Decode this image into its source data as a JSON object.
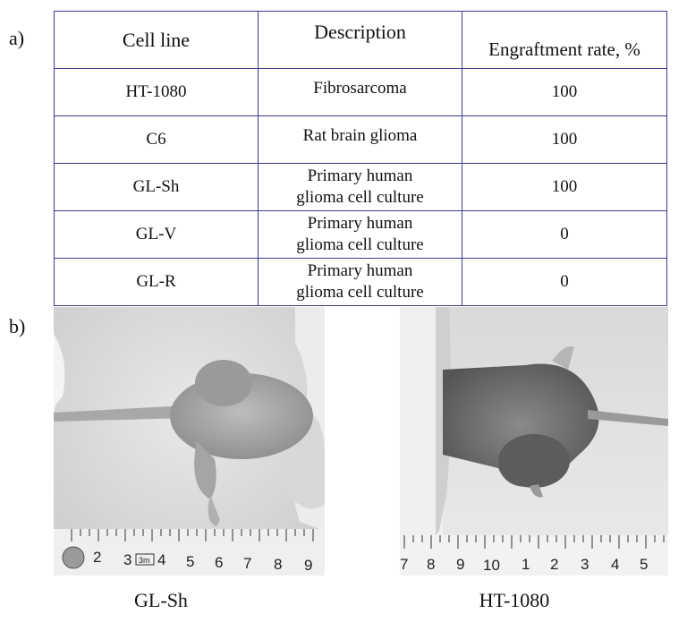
{
  "panel_labels": {
    "a": "a)",
    "b": "b)"
  },
  "table": {
    "headers": [
      "Cell line",
      "Description",
      "Engraftment rate, %"
    ],
    "rows": [
      {
        "cell_line": "HT-1080",
        "description": [
          "Fibrosarcoma"
        ],
        "rate": "100"
      },
      {
        "cell_line": "C6",
        "description": [
          "Rat brain glioma"
        ],
        "rate": "100"
      },
      {
        "cell_line": "GL-Sh",
        "description": [
          "Primary human",
          "glioma cell culture"
        ],
        "rate": "100"
      },
      {
        "cell_line": "GL-V",
        "description": [
          "Primary human",
          "glioma cell culture"
        ],
        "rate": "0"
      },
      {
        "cell_line": "GL-R",
        "description": [
          "Primary human",
          "glioma cell culture"
        ],
        "rate": "0"
      }
    ]
  },
  "photos": {
    "left": {
      "caption": "GL-Sh",
      "ruler_numbers": [
        "2",
        "3",
        "4",
        "5",
        "6",
        "7",
        "8",
        "9"
      ],
      "ruler_mark": "3m"
    },
    "right": {
      "caption": "HT-1080",
      "ruler_numbers": [
        "7",
        "8",
        "9",
        "10",
        "1",
        "2",
        "3",
        "4",
        "5"
      ]
    }
  }
}
